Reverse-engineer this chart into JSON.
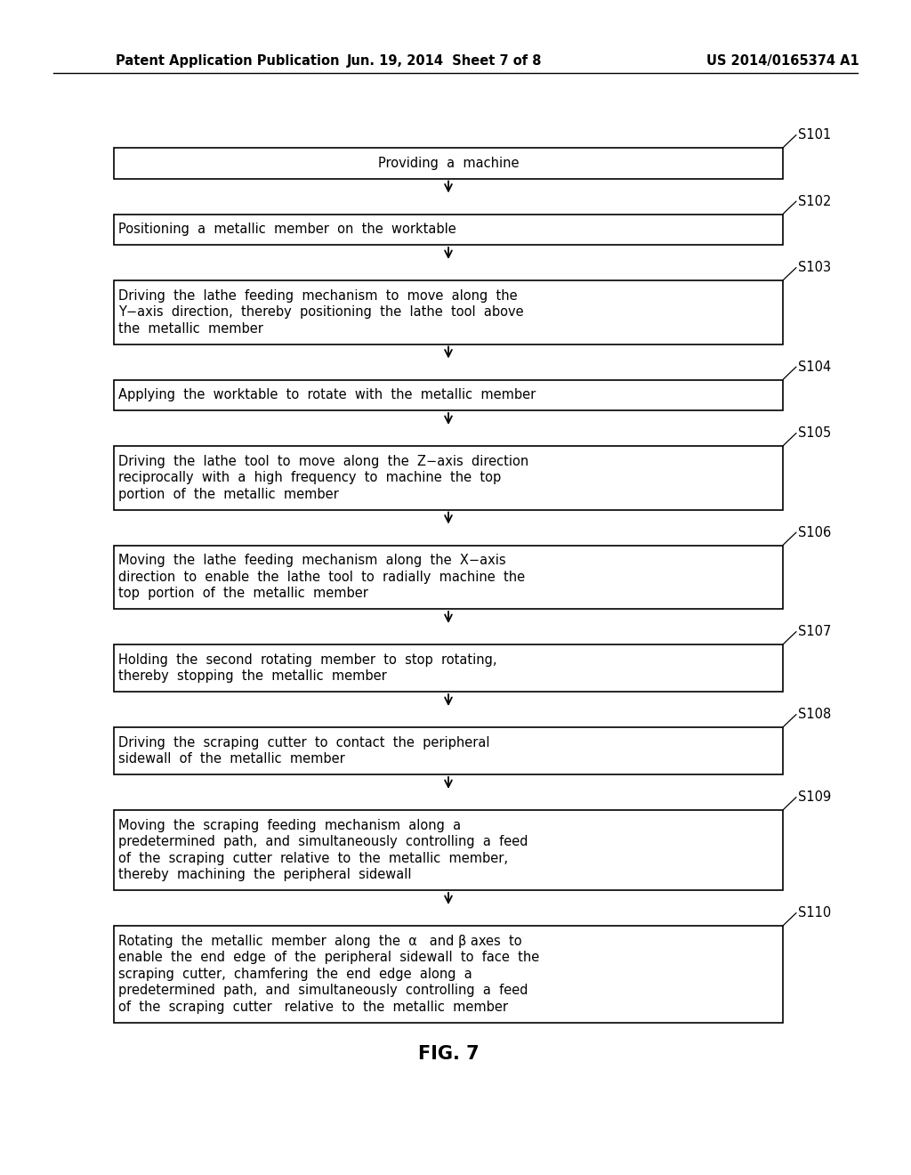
{
  "header_left": "Patent Application Publication",
  "header_mid": "Jun. 19, 2014  Sheet 7 of 8",
  "header_right": "US 2014/0165374 A1",
  "figure_label": "FIG. 7",
  "background_color": "#ffffff",
  "steps": [
    {
      "id": "S101",
      "lines": [
        "Providing  a  machine"
      ],
      "centered": true,
      "n_lines": 1
    },
    {
      "id": "S102",
      "lines": [
        "Positioning  a  metallic  member  on  the  worktable"
      ],
      "centered": false,
      "n_lines": 1
    },
    {
      "id": "S103",
      "lines": [
        "Driving  the  lathe  feeding  mechanism  to  move  along  the",
        "Y−axis  direction,  thereby  positioning  the  lathe  tool  above",
        "the  metallic  member"
      ],
      "centered": false,
      "n_lines": 3
    },
    {
      "id": "S104",
      "lines": [
        "Applying  the  worktable  to  rotate  with  the  metallic  member"
      ],
      "centered": false,
      "n_lines": 1
    },
    {
      "id": "S105",
      "lines": [
        "Driving  the  lathe  tool  to  move  along  the  Z−axis  direction",
        "reciprocally  with  a  high  frequency  to  machine  the  top",
        "portion  of  the  metallic  member"
      ],
      "centered": false,
      "n_lines": 3
    },
    {
      "id": "S106",
      "lines": [
        "Moving  the  lathe  feeding  mechanism  along  the  X−axis",
        "direction  to  enable  the  lathe  tool  to  radially  machine  the",
        "top  portion  of  the  metallic  member"
      ],
      "centered": false,
      "n_lines": 3
    },
    {
      "id": "S107",
      "lines": [
        "Holding  the  second  rotating  member  to  stop  rotating,",
        "thereby  stopping  the  metallic  member"
      ],
      "centered": false,
      "n_lines": 2
    },
    {
      "id": "S108",
      "lines": [
        "Driving  the  scraping  cutter  to  contact  the  peripheral",
        "sidewall  of  the  metallic  member"
      ],
      "centered": false,
      "n_lines": 2
    },
    {
      "id": "S109",
      "lines": [
        "Moving  the  scraping  feeding  mechanism  along  a",
        "predetermined  path,  and  simultaneously  controlling  a  feed",
        "of  the  scraping  cutter  relative  to  the  metallic  member,",
        "thereby  machining  the  peripheral  sidewall"
      ],
      "centered": false,
      "n_lines": 4
    },
    {
      "id": "S110",
      "lines": [
        "Rotating  the  metallic  member  along  the  α   and β axes  to",
        "enable  the  end  edge  of  the  peripheral  sidewall  to  face  the",
        "scraping  cutter,  chamfering  the  end  edge  along  a",
        "predetermined  path,  and  simultaneously  controlling  a  feed",
        "of  the  scraping  cutter   relative  to  the  metallic  member"
      ],
      "centered": false,
      "n_lines": 5
    }
  ],
  "text_color": "#000000",
  "box_edge_color": "#000000",
  "arrow_color": "#000000",
  "font_size": 10.5,
  "header_font_size": 10.5,
  "label_font_size": 10.5,
  "figure_label_font_size": 15
}
